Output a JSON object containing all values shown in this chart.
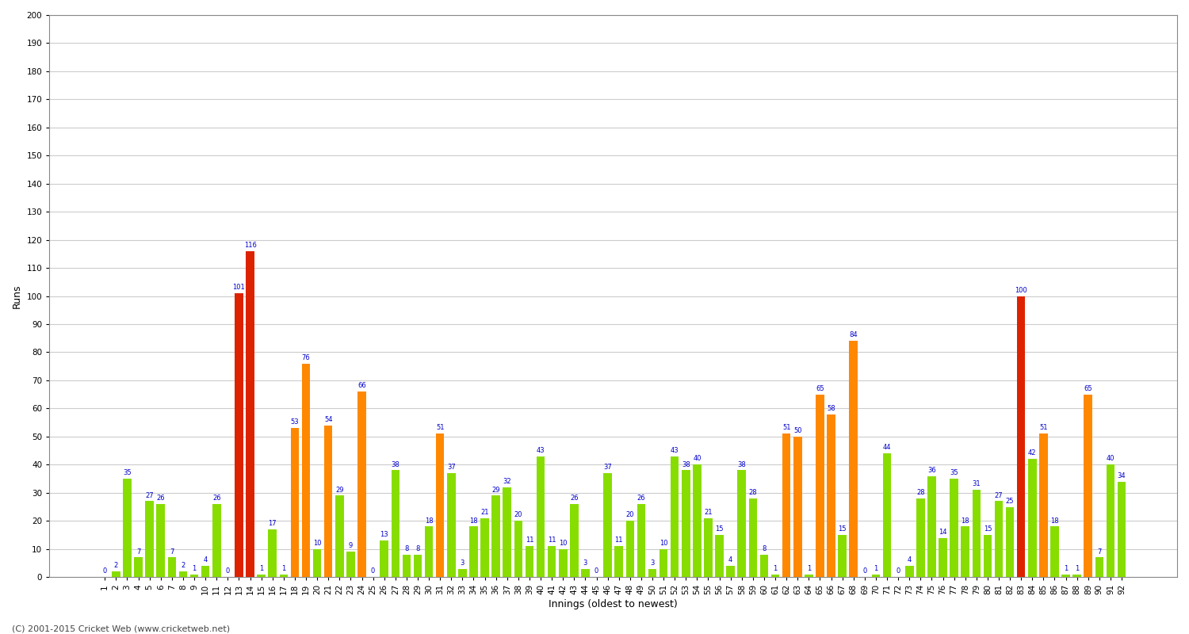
{
  "xlabel": "Innings (oldest to newest)",
  "ylabel": "Runs",
  "ylim": [
    0,
    200
  ],
  "yticks": [
    0,
    10,
    20,
    30,
    40,
    50,
    60,
    70,
    80,
    90,
    100,
    110,
    120,
    130,
    140,
    150,
    160,
    170,
    180,
    190,
    200
  ],
  "innings": [
    1,
    2,
    3,
    4,
    5,
    6,
    7,
    8,
    9,
    10,
    11,
    12,
    13,
    14,
    15,
    16,
    17,
    18,
    19,
    20,
    21,
    22,
    23,
    24,
    25,
    26,
    27,
    28,
    29,
    30,
    31,
    32,
    33,
    34,
    35,
    36,
    37,
    38,
    39,
    40,
    41,
    42,
    43,
    44,
    45,
    46,
    47,
    48,
    49,
    50,
    51,
    52,
    53,
    54,
    55,
    56,
    57,
    58,
    59,
    60,
    61,
    62,
    63,
    64,
    65,
    66,
    67,
    68,
    69,
    70,
    71,
    72,
    73,
    74,
    75,
    76,
    77,
    78,
    79,
    80,
    81,
    82,
    83,
    84,
    85,
    86,
    87,
    88,
    89,
    90,
    91,
    92
  ],
  "values": [
    0,
    2,
    35,
    7,
    27,
    26,
    7,
    2,
    1,
    4,
    26,
    0,
    101,
    116,
    1,
    17,
    1,
    53,
    76,
    10,
    54,
    29,
    9,
    66,
    0,
    13,
    38,
    8,
    8,
    18,
    51,
    37,
    3,
    18,
    21,
    29,
    32,
    20,
    11,
    43,
    11,
    10,
    26,
    3,
    0,
    37,
    11,
    20,
    26,
    3,
    10,
    43,
    38,
    40,
    21,
    15,
    4,
    38,
    28,
    8,
    1,
    51,
    50,
    1,
    65,
    58,
    15,
    84,
    0,
    1,
    44,
    0,
    4,
    28,
    36,
    14,
    35,
    18,
    31,
    15,
    27,
    25,
    100,
    42,
    51,
    18,
    1,
    1,
    65,
    7,
    40,
    34
  ],
  "colors": [
    "green",
    "green",
    "green",
    "green",
    "green",
    "green",
    "green",
    "green",
    "green",
    "green",
    "green",
    "green",
    "red",
    "red",
    "green",
    "green",
    "green",
    "orange",
    "orange",
    "green",
    "orange",
    "green",
    "green",
    "orange",
    "green",
    "green",
    "green",
    "green",
    "green",
    "green",
    "orange",
    "green",
    "green",
    "green",
    "green",
    "green",
    "green",
    "green",
    "green",
    "green",
    "green",
    "green",
    "green",
    "green",
    "green",
    "green",
    "green",
    "green",
    "green",
    "green",
    "green",
    "green",
    "green",
    "green",
    "green",
    "green",
    "green",
    "green",
    "green",
    "green",
    "green",
    "orange",
    "orange",
    "green",
    "orange",
    "orange",
    "green",
    "orange",
    "green",
    "green",
    "green",
    "green",
    "green",
    "green",
    "green",
    "green",
    "green",
    "green",
    "green",
    "green",
    "green",
    "green",
    "red",
    "green",
    "orange",
    "green",
    "green",
    "green",
    "orange",
    "green",
    "green",
    "green"
  ],
  "background_color": "#ffffff",
  "grid_color": "#cccccc",
  "bar_color_green": "#88dd00",
  "bar_color_orange": "#ff8800",
  "bar_color_red": "#dd2200",
  "label_color": "#0000cc",
  "label_fontsize": 6.0,
  "tick_fontsize": 7.5,
  "ylabel_fontsize": 9,
  "xlabel_fontsize": 9,
  "footer": "(C) 2001-2015 Cricket Web (www.cricketweb.net)",
  "footer_fontsize": 8
}
